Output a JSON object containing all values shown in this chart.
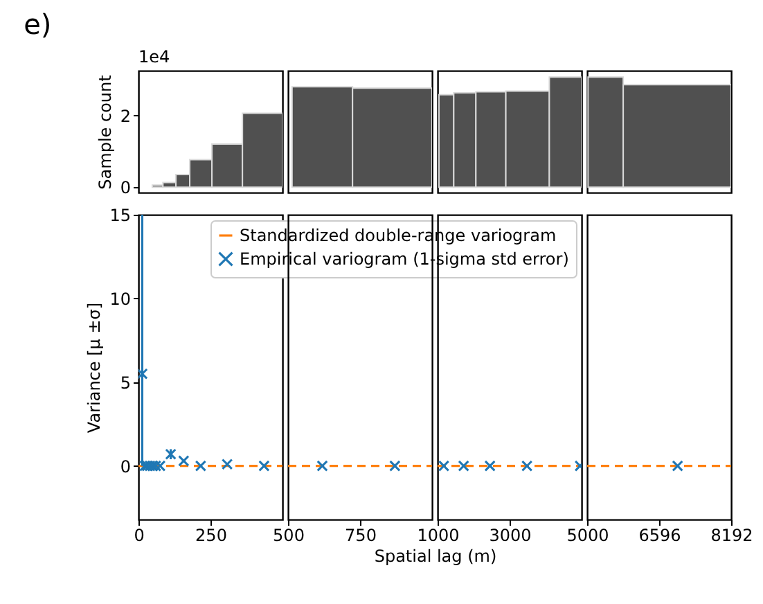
{
  "chart_data": [
    {
      "type": "histogram",
      "title": "e)",
      "ylabel": "Sample count",
      "annotations": [
        "1e4"
      ],
      "bins": [
        48,
        85,
        130,
        178,
        255,
        361,
        500
      ],
      "values": [
        0.06,
        0.13,
        0.35,
        0.77,
        1.2,
        2.06
      ],
      "color": "#505050",
      "xlim": [
        0,
        500
      ],
      "ylim": [
        -0.15,
        3.25
      ],
      "yticks": [
        0,
        2
      ],
      "tick_labels": "y"
    },
    {
      "type": "histogram",
      "bins": [
        514,
        724,
        1000
      ],
      "values": [
        2.8,
        2.76
      ],
      "color": "#505050",
      "xlim": [
        500,
        1000
      ],
      "ylim": [
        -0.15,
        3.25
      ],
      "tick_labels": false
    },
    {
      "type": "histogram",
      "bins": [
        1038,
        1449,
        2064,
        2896,
        4104,
        5000
      ],
      "values": [
        2.58,
        2.63,
        2.66,
        2.68,
        3.07
      ],
      "color": "#505050",
      "xlim": [
        1000,
        5000
      ],
      "ylim": [
        -0.15,
        3.25
      ],
      "tick_labels": false
    },
    {
      "type": "histogram",
      "bins": [
        5020,
        5800,
        8192
      ],
      "values": [
        3.07,
        2.86
      ],
      "color": "#505050",
      "xlim": [
        5000,
        8192
      ],
      "ylim": [
        -0.15,
        3.25
      ],
      "tick_labels": false
    },
    {
      "type": "scatter",
      "ylabel": "Variance [μ ±σ]",
      "xlim": [
        0,
        500
      ],
      "xticks": [
        0,
        250
      ],
      "ylim": [
        -3.2,
        15
      ],
      "yticks": [
        0,
        5,
        10,
        15
      ],
      "legend": "top right",
      "series": [
        {
          "type": "line",
          "name": "Standardized double-range variogram",
          "color": "#ff7f0e",
          "line_style": "dashed",
          "x": [
            0,
            500
          ],
          "values": [
            0,
            0
          ]
        },
        {
          "type": "scatter",
          "name": "Empirical variogram (1-sigma std error)",
          "color": "#1f77b4",
          "marker": "cross",
          "x": [
            13,
            22,
            30,
            40,
            50,
            60,
            75,
            112,
            157,
            216,
            308,
            436
          ],
          "values": [
            5.5,
            0,
            0,
            0,
            0,
            0,
            0,
            0.7,
            0.3,
            0,
            0.1,
            0
          ],
          "errors": [
            [
              0,
              15
            ],
            null,
            null,
            null,
            null,
            null,
            null,
            0.3,
            null,
            null,
            null,
            null
          ]
        }
      ]
    },
    {
      "type": "scatter",
      "xlabel": "Spatial lag (m)",
      "xlim": [
        500,
        1000
      ],
      "xticks": [
        500,
        750
      ],
      "ylim": [
        -3.2,
        15
      ],
      "tick_labels": "x",
      "series": [
        {
          "type": "line",
          "color": "#ff7f0e",
          "line_style": "dashed",
          "x": [
            500,
            1000
          ],
          "values": [
            0,
            0
          ]
        },
        {
          "type": "scatter",
          "color": "#1f77b4",
          "marker": "cross",
          "x": [
            619,
            871
          ],
          "values": [
            0,
            0
          ]
        }
      ]
    },
    {
      "type": "scatter",
      "xlim": [
        1000,
        5000
      ],
      "xticks": [
        1000,
        3000
      ],
      "ylim": [
        -3.2,
        15
      ],
      "tick_labels": "x",
      "series": [
        {
          "type": "line",
          "color": "#ff7f0e",
          "line_style": "dashed",
          "x": [
            1000,
            5000
          ],
          "values": [
            0,
            0
          ]
        },
        {
          "type": "scatter",
          "color": "#1f77b4",
          "marker": "cross",
          "x": [
            1173,
            1724,
            2455,
            3483,
            4958
          ],
          "values": [
            0,
            0,
            0,
            0,
            0
          ]
        }
      ]
    },
    {
      "type": "scatter",
      "xlim": [
        5000,
        8192
      ],
      "xticks": [
        5000,
        6596,
        8192
      ],
      "ylim": [
        -3.2,
        15
      ],
      "tick_labels": "x",
      "series": [
        {
          "type": "line",
          "color": "#ff7f0e",
          "line_style": "dashed",
          "x": [
            5000,
            8192
          ],
          "values": [
            0,
            0
          ]
        },
        {
          "type": "scatter",
          "color": "#1f77b4",
          "marker": "cross",
          "x": [
            7005
          ],
          "values": [
            0
          ]
        }
      ]
    }
  ]
}
